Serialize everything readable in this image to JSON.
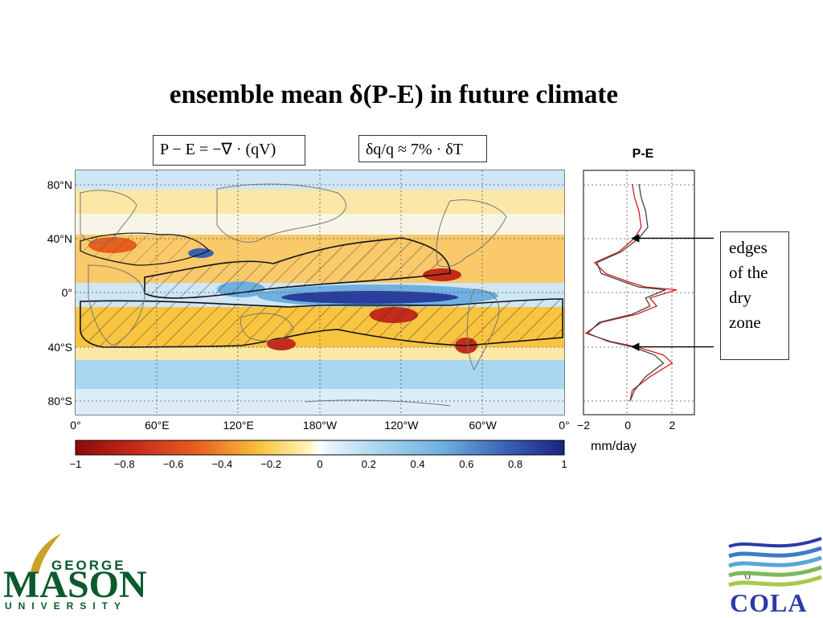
{
  "slide": {
    "title": "ensemble mean δ(P-E) in future climate",
    "equation_1": "P − E = −∇ · (qV)",
    "equation_2": "δq/q ≈ 7% · δT",
    "side_panel_title": "P-E",
    "side_panel_unit": "mm/day",
    "annotation": [
      "edges",
      "of the",
      "dry",
      "zone"
    ],
    "page_number": "6"
  },
  "logos": {
    "left": {
      "line1": "GEORGE",
      "line2": "MASON",
      "line3": "UNIVERSITY",
      "color": "#0a5a2e",
      "accent": "#c9a227"
    },
    "right": {
      "text": "COLA",
      "color": "#2b3aa8"
    }
  },
  "chart_data": [
    {
      "type": "heatmap",
      "description_fields": {
        "x_ticks": [
          "0°",
          "60°E",
          "120°E",
          "180°W",
          "120°W",
          "60°W",
          "0°"
        ],
        "y_ticks": [
          "80°N",
          "40°N",
          "0°",
          "40°S",
          "80°S"
        ],
        "colorbar_ticks": [
          "−1",
          "−0.8",
          "−0.6",
          "−0.4",
          "−0.2",
          "0",
          "0.2",
          "0.4",
          "0.6",
          "0.8",
          "1"
        ]
      },
      "colorbar_range": [
        -1,
        1
      ],
      "colors": {
        "deep_negative": "#8b0a0a",
        "negative": "#e8601c",
        "mild_negative": "#f9c440",
        "near_zero": "#ffffff",
        "mild_positive": "#a9d6f0",
        "positive": "#4a86c8",
        "deep_positive": "#1a237e"
      }
    },
    {
      "type": "line",
      "x_ticks": [
        "−2",
        "0",
        "2"
      ],
      "xlim": [
        -2,
        3
      ],
      "ylim": [
        -90,
        90
      ],
      "series": [
        {
          "color": "#d81b1b",
          "x": [
            0.2,
            0.3,
            0.5,
            0.6,
            0.3,
            -0.4,
            -1.5,
            -1.0,
            0.0,
            0.8,
            2.2,
            1.0,
            1.3,
            0.4,
            -1.2,
            -1.9,
            -0.8,
            0.4,
            1.6,
            2.0,
            1.0,
            0.2,
            0.1
          ],
          "y": [
            80,
            70,
            60,
            48,
            40,
            30,
            22,
            14,
            8,
            4,
            2,
            -4,
            -10,
            -16,
            -22,
            -30,
            -36,
            -40,
            -46,
            -52,
            -62,
            -72,
            -80
          ]
        },
        {
          "color": "#444444",
          "x": [
            0.5,
            0.6,
            0.8,
            0.9,
            0.5,
            -0.3,
            -1.4,
            -1.2,
            -0.2,
            0.5,
            1.7,
            0.8,
            1.0,
            0.2,
            -1.3,
            -1.8,
            -0.9,
            0.2,
            1.2,
            1.6,
            0.8,
            0.3,
            0.1
          ],
          "y": [
            80,
            70,
            60,
            48,
            40,
            30,
            22,
            14,
            8,
            4,
            2,
            -4,
            -10,
            -16,
            -22,
            -30,
            -36,
            -40,
            -46,
            -52,
            -62,
            -72,
            -80
          ]
        }
      ],
      "arrow_latitudes": [
        40,
        -40
      ]
    }
  ]
}
